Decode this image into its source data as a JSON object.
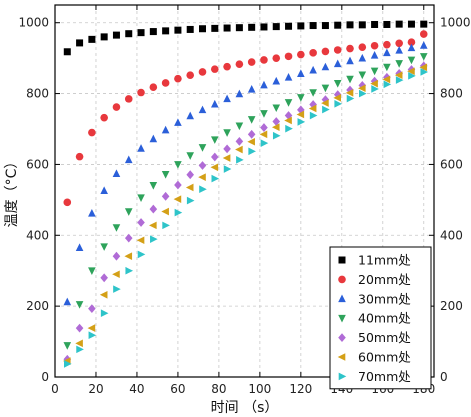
{
  "chart_data": {
    "type": "scatter",
    "title": "",
    "xlabel": "时间 （s）",
    "ylabel": "温度（°C）",
    "xlim": [
      0,
      185
    ],
    "ylim": [
      0,
      1050
    ],
    "xticks": [
      0,
      20,
      40,
      60,
      80,
      100,
      120,
      140,
      160,
      180
    ],
    "yticks": [
      0,
      200,
      400,
      600,
      800,
      1000
    ],
    "mirror_right_axis": true,
    "grid": true,
    "legend_position": "bottom-right",
    "series": [
      {
        "name": "11mm处",
        "marker": "square",
        "color": "#000000",
        "x": [
          6,
          12,
          18,
          24,
          30,
          36,
          42,
          48,
          54,
          60,
          66,
          72,
          78,
          84,
          90,
          96,
          102,
          108,
          114,
          120,
          126,
          132,
          138,
          144,
          150,
          156,
          162,
          168,
          174,
          180
        ],
        "y": [
          918,
          943,
          953,
          960,
          965,
          969,
          972,
          975,
          977,
          979,
          981,
          983,
          984,
          985,
          986,
          987,
          988,
          989,
          990,
          991,
          992,
          992,
          993,
          994,
          994,
          995,
          995,
          996,
          996,
          996
        ]
      },
      {
        "name": "20mm处",
        "marker": "circle",
        "color": "#e8383d",
        "x": [
          6,
          12,
          18,
          24,
          30,
          36,
          42,
          48,
          54,
          60,
          66,
          72,
          78,
          84,
          90,
          96,
          102,
          108,
          114,
          120,
          126,
          132,
          138,
          144,
          150,
          156,
          162,
          168,
          174,
          180
        ],
        "y": [
          493,
          622,
          690,
          732,
          762,
          785,
          803,
          818,
          830,
          842,
          852,
          861,
          869,
          876,
          883,
          889,
          895,
          900,
          905,
          910,
          915,
          919,
          923,
          927,
          931,
          935,
          938,
          942,
          945,
          968
        ]
      },
      {
        "name": "30mm处",
        "marker": "triangle-up",
        "color": "#2b5fd9",
        "x": [
          6,
          12,
          18,
          24,
          30,
          36,
          42,
          48,
          54,
          60,
          66,
          72,
          78,
          84,
          90,
          96,
          102,
          108,
          114,
          120,
          126,
          132,
          138,
          144,
          150,
          156,
          162,
          168,
          174,
          180
        ],
        "y": [
          212,
          365,
          462,
          526,
          574,
          613,
          645,
          672,
          697,
          718,
          737,
          754,
          770,
          785,
          799,
          812,
          824,
          835,
          846,
          856,
          866,
          875,
          884,
          892,
          900,
          908,
          915,
          922,
          929,
          936
        ]
      },
      {
        "name": "40mm处",
        "marker": "triangle-down",
        "color": "#2ea35b",
        "x": [
          6,
          12,
          18,
          24,
          30,
          36,
          42,
          48,
          54,
          60,
          66,
          72,
          78,
          84,
          90,
          96,
          102,
          108,
          114,
          120,
          126,
          132,
          138,
          144,
          150,
          156,
          162,
          168,
          174,
          180
        ],
        "y": [
          89,
          205,
          300,
          368,
          422,
          467,
          506,
          541,
          572,
          600,
          625,
          648,
          670,
          690,
          709,
          727,
          744,
          760,
          775,
          789,
          803,
          816,
          829,
          841,
          853,
          864,
          875,
          885,
          895,
          905
        ]
      },
      {
        "name": "50mm处",
        "marker": "diamond",
        "color": "#b06bd6",
        "x": [
          6,
          12,
          18,
          24,
          30,
          36,
          42,
          48,
          54,
          60,
          66,
          72,
          78,
          84,
          90,
          96,
          102,
          108,
          114,
          120,
          126,
          132,
          138,
          144,
          150,
          156,
          162,
          168,
          174,
          180
        ],
        "y": [
          50,
          138,
          193,
          280,
          341,
          392,
          436,
          474,
          510,
          542,
          571,
          597,
          621,
          644,
          665,
          685,
          704,
          721,
          738,
          754,
          769,
          783,
          797,
          810,
          823,
          835,
          846,
          857,
          868,
          878
        ]
      },
      {
        "name": "60mm处",
        "marker": "triangle-left",
        "color": "#d4a017",
        "x": [
          6,
          12,
          18,
          24,
          30,
          36,
          42,
          48,
          54,
          60,
          66,
          72,
          78,
          84,
          90,
          96,
          102,
          108,
          114,
          120,
          126,
          132,
          138,
          144,
          150,
          156,
          162,
          168,
          174,
          180
        ],
        "y": [
          45,
          95,
          138,
          232,
          290,
          341,
          386,
          428,
          467,
          502,
          535,
          564,
          592,
          618,
          642,
          664,
          685,
          705,
          724,
          741,
          758,
          773,
          788,
          802,
          815,
          828,
          840,
          852,
          863,
          874
        ]
      },
      {
        "name": "70mm处",
        "marker": "triangle-right",
        "color": "#2ec4c9",
        "x": [
          6,
          12,
          18,
          24,
          30,
          36,
          42,
          48,
          54,
          60,
          66,
          72,
          78,
          84,
          90,
          96,
          102,
          108,
          114,
          120,
          126,
          132,
          138,
          144,
          150,
          156,
          162,
          168,
          174,
          180
        ],
        "y": [
          37,
          78,
          118,
          180,
          248,
          300,
          346,
          389,
          428,
          464,
          498,
          530,
          560,
          587,
          613,
          637,
          660,
          681,
          701,
          720,
          738,
          755,
          771,
          786,
          800,
          813,
          826,
          838,
          850,
          861
        ]
      }
    ]
  }
}
